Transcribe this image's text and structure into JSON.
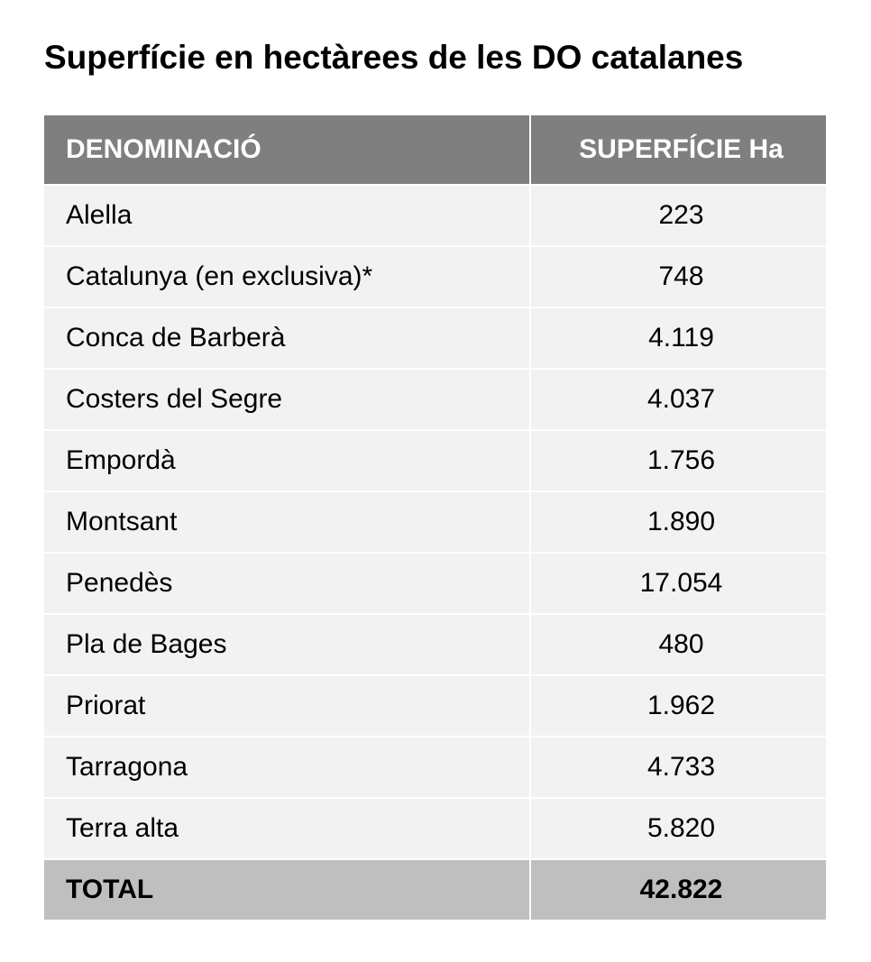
{
  "title": "Superfície en hectàrees de les DO catalanes",
  "table": {
    "headers": [
      "DENOMINACIÓ",
      "SUPERFÍCIE Ha"
    ],
    "rows": [
      [
        "Alella",
        "223"
      ],
      [
        "Catalunya (en exclusiva)*",
        "748"
      ],
      [
        "Conca de Barberà",
        "4.119"
      ],
      [
        "Costers del Segre",
        "4.037"
      ],
      [
        "Empordà",
        "1.756"
      ],
      [
        "Montsant",
        "1.890"
      ],
      [
        "Penedès",
        "17.054"
      ],
      [
        "Pla de Bages",
        "480"
      ],
      [
        "Priorat",
        "1.962"
      ],
      [
        "Tarragona",
        "4.733"
      ],
      [
        "Terra alta",
        "5.820"
      ]
    ],
    "total": [
      "TOTAL",
      "42.822"
    ]
  },
  "colors": {
    "header_bg": "#7f7f7f",
    "row_bg": "#f2f2f2",
    "total_bg": "#bfbfbf"
  }
}
